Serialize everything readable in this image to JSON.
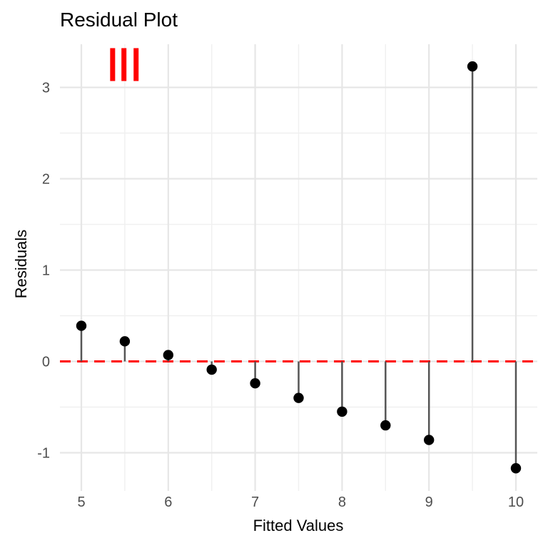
{
  "chart_data": {
    "type": "scatter",
    "subtype": "lollipop-residual-plot",
    "title": "Residual Plot",
    "xlabel": "Fitted Values",
    "ylabel": "Residuals",
    "x": [
      5,
      5.5,
      6,
      6.5,
      7,
      7.5,
      8,
      8.5,
      9,
      9.5,
      10
    ],
    "residuals": [
      0.39,
      0.22,
      0.07,
      -0.09,
      -0.24,
      -0.4,
      -0.55,
      -0.7,
      -0.86,
      3.23,
      -1.17
    ],
    "x_ticks": [
      5,
      6,
      7,
      8,
      9,
      10
    ],
    "y_ticks": [
      -1,
      0,
      1,
      2,
      3
    ],
    "x_minor_gridlines": [
      5.5,
      6.5,
      7.5,
      8.5,
      9.5
    ],
    "y_minor_gridlines": [
      -0.5,
      0.5,
      1.5,
      2.5
    ],
    "xlim": [
      4.75,
      10.25
    ],
    "ylim": [
      -1.42,
      3.47
    ],
    "grid": true,
    "legend": false,
    "zero_line": {
      "y": 0,
      "style": "dashed",
      "color": "#ff0000"
    },
    "annotation_red_bars": {
      "description": "three thick red vertical tick marks near top-left of panel",
      "color": "#ff0000",
      "centers_x": [
        5.36,
        5.49,
        5.63
      ],
      "y_bottom": 3.07,
      "y_top": 3.43
    },
    "colors": {
      "point": "#000000",
      "stem": "#555555",
      "grid_major": "#e6e6e6",
      "grid_minor": "#f0f0f0",
      "tick_label": "#4d4d4d",
      "title": "#000000",
      "axis_label": "#000000",
      "background": "#ffffff"
    }
  }
}
